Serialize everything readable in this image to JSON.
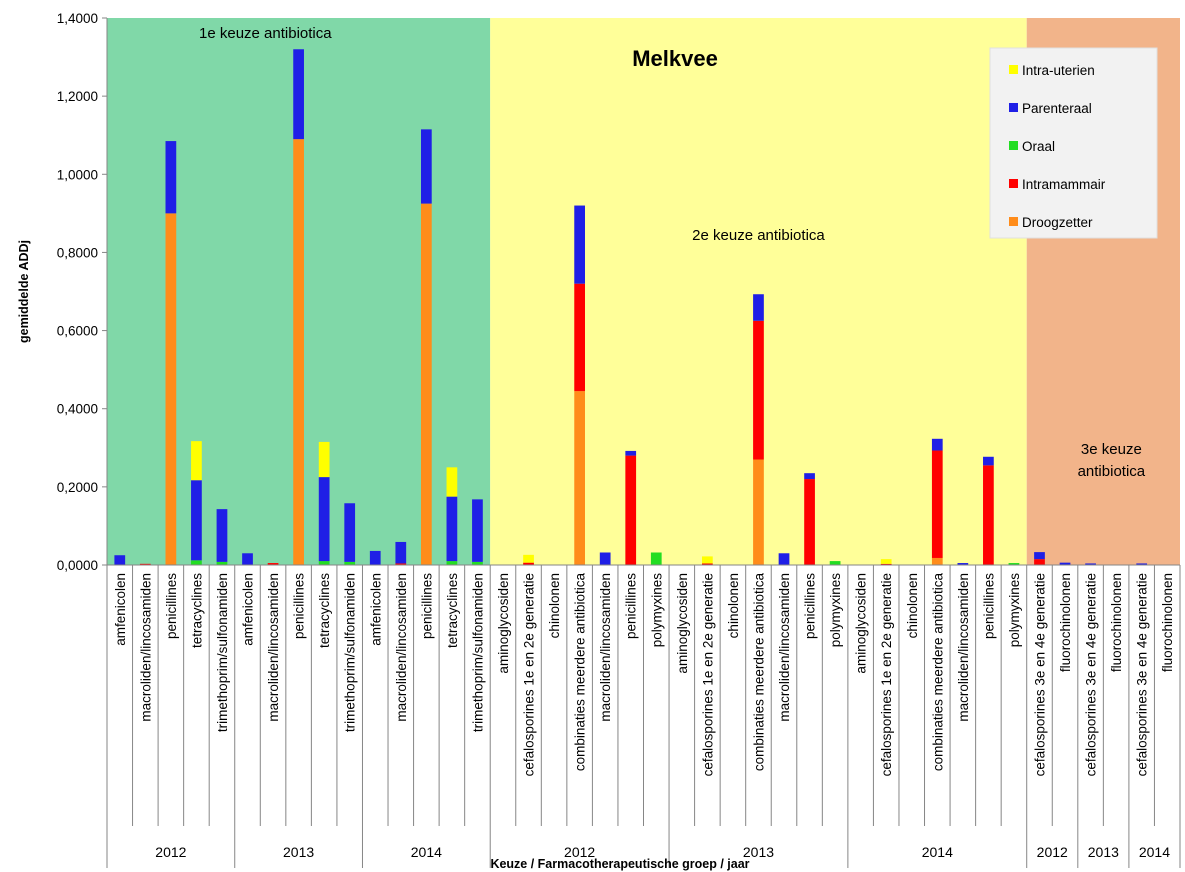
{
  "chart_data": {
    "type": "bar",
    "stacked": true,
    "title": "Melkvee",
    "ylabel": "gemiddelde ADDj",
    "xlabel": "Keuze / Farmacotherapeutische groep / jaar",
    "ylim": [
      0,
      1.4
    ],
    "yticks": [
      "0,0000",
      "0,2000",
      "0,4000",
      "0,6000",
      "0,8000",
      "1,0000",
      "1,2000",
      "1,4000"
    ],
    "legend_position": "top-right",
    "colors": {
      "Intra-uterien": "#ffff00",
      "Parenteraal": "#1f1fe6",
      "Oraal": "#22dd22",
      "Intramammair": "#ff0000",
      "Droogzetter": "#ff8c1a"
    },
    "series_order_legend": [
      "Intra-uterien",
      "Parenteraal",
      "Oraal",
      "Intramammair",
      "Droogzetter"
    ],
    "series_stack_order": [
      "Droogzetter",
      "Intramammair",
      "Oraal",
      "Parenteraal",
      "Intra-uterien"
    ],
    "zones": [
      {
        "label": "1e keuze antibiotica",
        "color": "#80d8a8",
        "from": 0,
        "to": 15
      },
      {
        "label": "2e keuze antibiotica",
        "color": "#ffff99",
        "from": 15,
        "to": 36
      },
      {
        "label": "3e keuze\nantibiotica",
        "color": "#f2b48a",
        "from": 36,
        "to": 42
      }
    ],
    "groups": [
      {
        "label": "2012",
        "from": 0,
        "to": 5
      },
      {
        "label": "2013",
        "from": 5,
        "to": 10
      },
      {
        "label": "2014",
        "from": 10,
        "to": 15
      },
      {
        "label": "2012",
        "from": 15,
        "to": 22
      },
      {
        "label": "2013",
        "from": 22,
        "to": 29
      },
      {
        "label": "2014",
        "from": 29,
        "to": 36
      },
      {
        "label": "2012",
        "from": 36,
        "to": 38
      },
      {
        "label": "2013",
        "from": 38,
        "to": 40
      },
      {
        "label": "2014",
        "from": 40,
        "to": 42
      }
    ],
    "categories": [
      "amfenicolen",
      "macroliden/lincosamiden",
      "penicillines",
      "tetracyclines",
      "trimethoprim/sulfonamiden",
      "amfenicolen",
      "macroliden/lincosamiden",
      "penicillines",
      "tetracyclines",
      "trimethoprim/sulfonamiden",
      "amfenicolen",
      "macroliden/lincosamiden",
      "penicillines",
      "tetracyclines",
      "trimethoprim/sulfonamiden",
      "aminoglycosiden",
      "cefalosporines 1e en 2e generatie",
      "chinolonen",
      "combinaties meerdere antibiotica",
      "macroliden/lincosamiden",
      "penicillines",
      "polymyxines",
      "aminoglycosiden",
      "cefalosporines 1e en 2e generatie",
      "chinolonen",
      "combinaties meerdere antibiotica",
      "macroliden/lincosamiden",
      "penicillines",
      "polymyxines",
      "aminoglycosiden",
      "cefalosporines 1e en 2e generatie",
      "chinolonen",
      "combinaties meerdere antibiotica",
      "macroliden/lincosamiden",
      "penicillines",
      "polymyxines",
      "cefalosporines 3e en 4e generatie",
      "fluorochinolonen",
      "cefalosporines 3e en 4e generatie",
      "fluorochinolonen",
      "cefalosporines 3e en 4e generatie",
      "fluorochinolonen"
    ],
    "series": [
      {
        "name": "Droogzetter",
        "values": [
          0,
          0,
          0.9,
          0,
          0,
          0,
          0,
          1.09,
          0,
          0,
          0,
          0,
          0.925,
          0,
          0,
          0,
          0,
          0,
          0.445,
          0,
          0,
          0,
          0,
          0,
          0,
          0.27,
          0,
          0,
          0,
          0,
          0,
          0,
          0.018,
          0,
          0,
          0,
          0,
          0,
          0,
          0,
          0,
          0
        ]
      },
      {
        "name": "Intramammair",
        "values": [
          0,
          0.003,
          0,
          0,
          0,
          0,
          0.005,
          0,
          0,
          0,
          0,
          0.004,
          0,
          0,
          0,
          0,
          0.006,
          0,
          0.275,
          0,
          0.28,
          0,
          0,
          0.004,
          0,
          0.355,
          0,
          0.22,
          0,
          0,
          0.003,
          0,
          0.275,
          0,
          0.255,
          0,
          0.015,
          0,
          0,
          0,
          0,
          0
        ]
      },
      {
        "name": "Oraal",
        "values": [
          0,
          0,
          0,
          0.012,
          0.008,
          0,
          0,
          0,
          0.01,
          0.008,
          0,
          0,
          0,
          0.01,
          0.008,
          0,
          0,
          0,
          0,
          0,
          0,
          0.032,
          0,
          0,
          0,
          0,
          0,
          0,
          0.01,
          0,
          0,
          0,
          0,
          0,
          0,
          0.005,
          0,
          0,
          0,
          0,
          0,
          0
        ]
      },
      {
        "name": "Parenteraal",
        "values": [
          0.025,
          0,
          0.185,
          0.205,
          0.135,
          0.03,
          0,
          0.23,
          0.215,
          0.15,
          0.036,
          0.055,
          0.19,
          0.165,
          0.16,
          0,
          0,
          0,
          0.2,
          0.032,
          0.012,
          0,
          0,
          0,
          0,
          0.068,
          0.03,
          0.015,
          0,
          0,
          0,
          0,
          0.03,
          0.005,
          0.022,
          0,
          0.018,
          0.006,
          0.004,
          0,
          0.004,
          0
        ]
      },
      {
        "name": "Intra-uterien",
        "values": [
          0,
          0,
          0,
          0.1,
          0,
          0,
          0,
          0,
          0.09,
          0,
          0,
          0,
          0,
          0.075,
          0,
          0,
          0.02,
          0,
          0,
          0,
          0,
          0,
          0,
          0.018,
          0,
          0,
          0,
          0,
          0,
          0,
          0.012,
          0,
          0,
          0,
          0,
          0,
          0,
          0,
          0,
          0,
          0,
          0
        ]
      }
    ]
  }
}
